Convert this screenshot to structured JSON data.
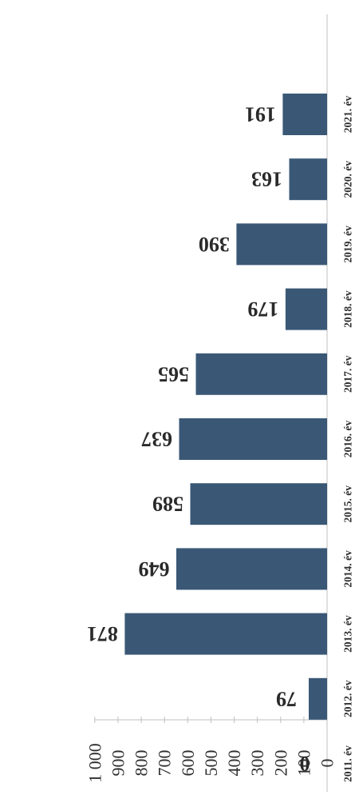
{
  "chart_data": {
    "type": "bar",
    "orientation": "rotated-180 horizontal bars",
    "categories": [
      "2011. év",
      "2012. év",
      "2013. év",
      "2014. év",
      "2015. év",
      "2016. év",
      "2017. év",
      "2018. év",
      "2019. év",
      "2020. év",
      "2021. év"
    ],
    "values": [
      0,
      79,
      871,
      649,
      589,
      637,
      565,
      179,
      390,
      163,
      191
    ],
    "data_labels": [
      "0",
      "79",
      "871",
      "649",
      "589",
      "637",
      "565",
      "179",
      "390",
      "163",
      "191"
    ],
    "value_axis": {
      "min": 0,
      "max": 1000,
      "step": 100,
      "tick_labels": [
        "0",
        "100",
        "200",
        "300",
        "400",
        "500",
        "600",
        "700",
        "800",
        "900",
        "1 000"
      ]
    },
    "grid": false,
    "legend": "none",
    "colors": {
      "bar": "#3a5876",
      "axis": "#bfbfbf",
      "text": "#2f2f2f",
      "background": "#ffffff"
    }
  }
}
